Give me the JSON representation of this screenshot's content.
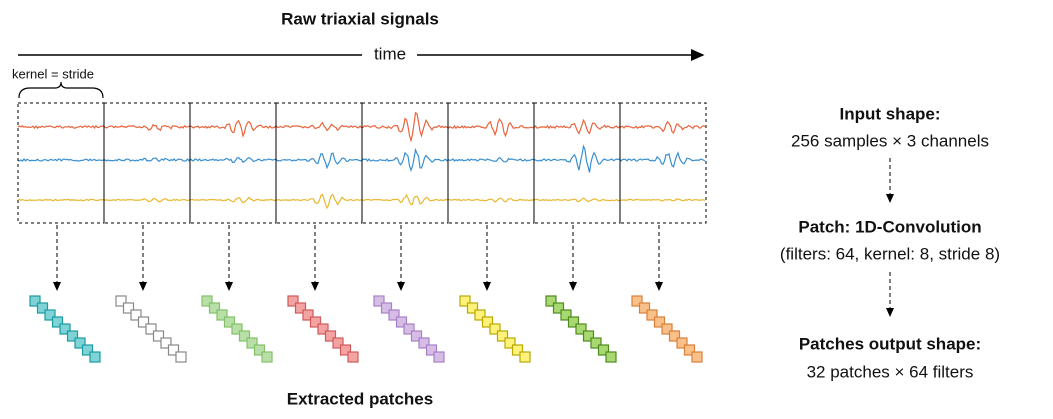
{
  "title": "Raw triaxial signals",
  "time_label": "time",
  "kernel_label": "kernel = stride",
  "steps": [
    {
      "title": "Input shape:",
      "detail": "256 samples × 3 channels"
    },
    {
      "title": "Patch: 1D-Convolution",
      "detail": "(filters: 64, kernel: 8, stride 8)"
    },
    {
      "title": "Patches output shape:",
      "detail": "32 patches × 64 filters"
    }
  ],
  "footer": "Extracted patches"
}
